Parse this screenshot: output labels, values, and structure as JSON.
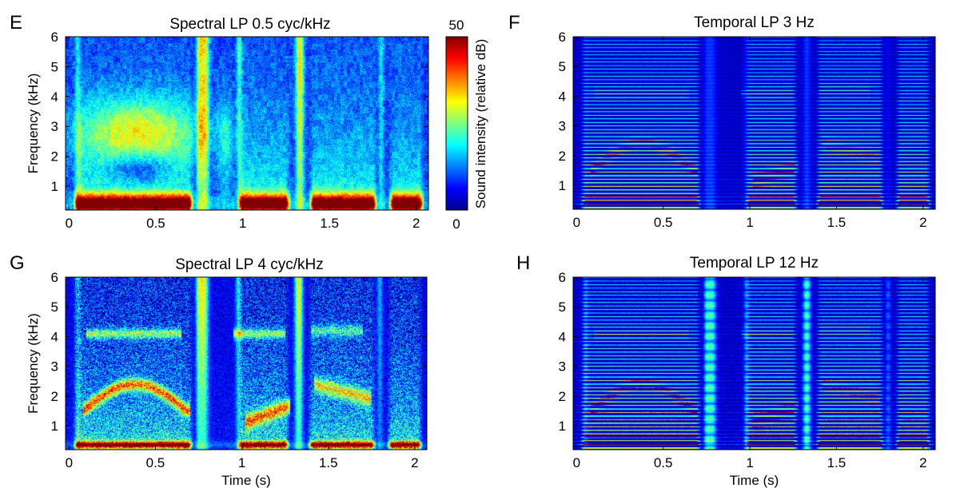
{
  "figure": {
    "colorbar": {
      "label": "Sound intensity (relative dB)",
      "min": 0,
      "max": 50,
      "min_label": "0",
      "max_label": "50",
      "colormap": "jet"
    }
  },
  "chart_data": [
    {
      "panel": "E",
      "type": "heatmap",
      "title": "Spectral LP 0.5 cyc/kHz",
      "xlabel": "",
      "ylabel": "Frequency (kHz)",
      "xlim": [
        -0.02,
        2.07
      ],
      "ylim": [
        0.2,
        6
      ],
      "xticks": [
        "0",
        "0.5",
        "1",
        "1.5",
        "2"
      ],
      "yticks": [
        "1",
        "2",
        "3",
        "4",
        "5",
        "6"
      ],
      "filter": "spectral",
      "harmonic_spacing_khz": 0.12,
      "intensity_range_db": [
        0,
        50
      ]
    },
    {
      "panel": "F",
      "type": "heatmap",
      "title": "Temporal LP 3 Hz",
      "xlabel": "",
      "ylabel": "",
      "xlim": [
        -0.02,
        2.07
      ],
      "ylim": [
        0.2,
        6
      ],
      "xticks": [
        "0",
        "0.5",
        "1",
        "1.5",
        "2"
      ],
      "yticks": [
        "1",
        "2",
        "3",
        "4",
        "5",
        "6"
      ],
      "filter": "temporal",
      "harmonic_spacing_khz": 0.12,
      "intensity_range_db": [
        0,
        50
      ]
    },
    {
      "panel": "G",
      "type": "heatmap",
      "title": "Spectral LP 4 cyc/kHz",
      "xlabel": "Time (s)",
      "ylabel": "Frequency (kHz)",
      "xlim": [
        -0.02,
        2.07
      ],
      "ylim": [
        0.2,
        6
      ],
      "xticks": [
        "0",
        "0.5",
        "1",
        "1.5",
        "2"
      ],
      "yticks": [
        "1",
        "2",
        "3",
        "4",
        "5",
        "6"
      ],
      "filter": "spectral-fine",
      "harmonic_spacing_khz": 0.12,
      "intensity_range_db": [
        0,
        50
      ]
    },
    {
      "panel": "H",
      "type": "heatmap",
      "title": "Temporal LP 12 Hz",
      "xlabel": "Time (s)",
      "ylabel": "",
      "xlim": [
        -0.02,
        2.07
      ],
      "ylim": [
        0.2,
        6
      ],
      "xticks": [
        "0",
        "0.5",
        "1",
        "1.5",
        "2"
      ],
      "yticks": [
        "1",
        "2",
        "3",
        "4",
        "5",
        "6"
      ],
      "filter": "temporal-fine",
      "harmonic_spacing_khz": 0.12,
      "intensity_range_db": [
        0,
        50
      ]
    }
  ]
}
